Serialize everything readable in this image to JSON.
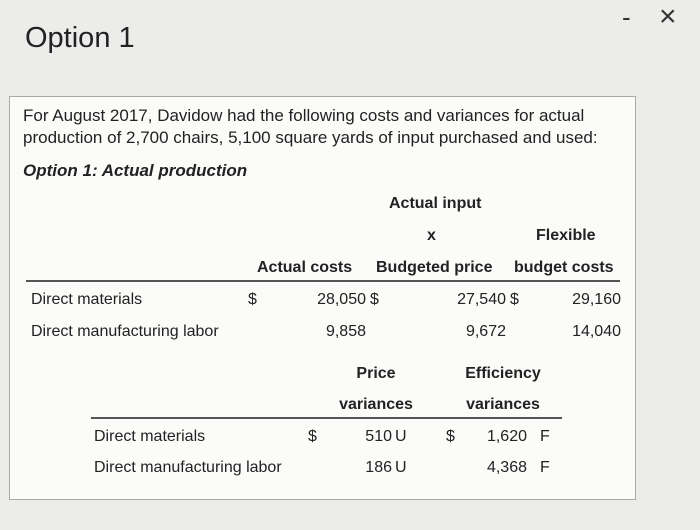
{
  "window": {
    "title": "Option 1",
    "minimize_glyph": "-",
    "close_glyph": "×"
  },
  "intro_text": "For August 2017, Davidow had the following costs and variances for actual production of 2,700 chairs, 5,100 square yards of input purchased and used:",
  "subtitle": "Option 1: Actual production",
  "table1": {
    "group_header": "Actual input",
    "x_header": "x",
    "flexible_header": "Flexible",
    "col_actual_costs": "Actual costs",
    "col_budgeted_price": "Budgeted price",
    "col_budget_costs": "budget costs",
    "rows": [
      {
        "label": "Direct materials",
        "cur1": "$",
        "actual_costs": "28,050",
        "cur2": "$",
        "actual_input": "27,540",
        "cur3": "$",
        "flexible_budget": "29,160"
      },
      {
        "label": "Direct manufacturing labor",
        "cur1": "",
        "actual_costs": "9,858",
        "cur2": "",
        "actual_input": "9,672",
        "cur3": "",
        "flexible_budget": "14,040"
      }
    ]
  },
  "table2": {
    "price_header_line1": "Price",
    "price_header_line2": "variances",
    "eff_header_line1": "Efficiency",
    "eff_header_line2": "variances",
    "rows": [
      {
        "label": "Direct materials",
        "cur1": "$",
        "price_var": "510",
        "price_flag": "U",
        "cur2": "$",
        "eff_var": "1,620",
        "eff_flag": "F"
      },
      {
        "label": "Direct manufacturing labor",
        "cur1": "",
        "price_var": "186",
        "price_flag": "U",
        "cur2": "",
        "eff_var": "4,368",
        "eff_flag": "F"
      }
    ]
  }
}
